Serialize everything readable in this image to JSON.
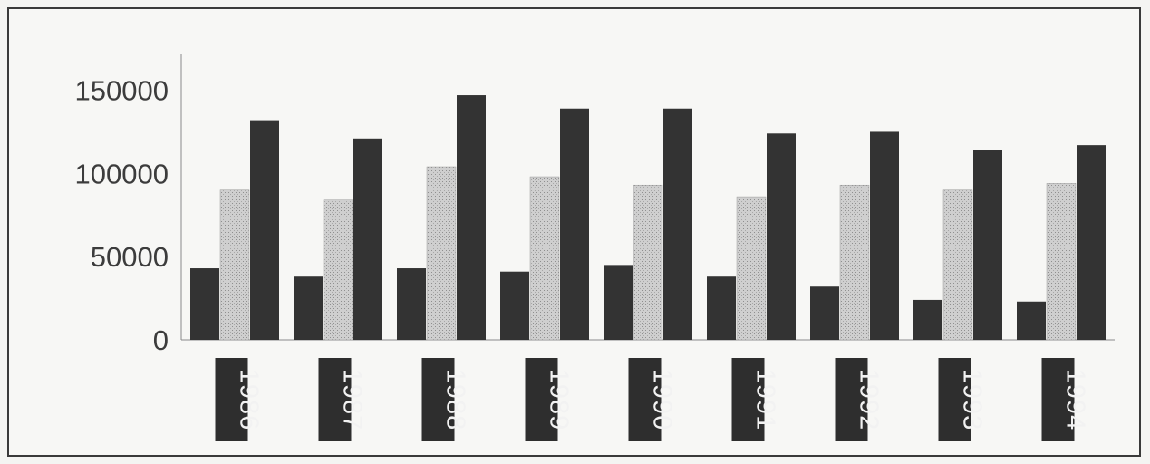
{
  "chart_data": {
    "type": "bar",
    "title": "",
    "xlabel": "",
    "ylabel": "",
    "ylim": [
      0,
      165000
    ],
    "yticks": [
      0,
      50000,
      100000,
      150000
    ],
    "ytick_labels": [
      "0",
      "50000",
      "100000",
      "150000"
    ],
    "categories": [
      "1986",
      "1987",
      "1988",
      "1989",
      "1990",
      "1991",
      "1992",
      "1993",
      "1994"
    ],
    "series": [
      {
        "values": [
          43000,
          38000,
          43000,
          41000,
          45000,
          38000,
          32000,
          24000,
          23000
        ]
      },
      {
        "values": [
          90000,
          84000,
          104000,
          98000,
          93000,
          86000,
          93000,
          90000,
          94000
        ]
      },
      {
        "values": [
          132000,
          121000,
          147000,
          139000,
          139000,
          124000,
          125000,
          114000,
          117000
        ]
      }
    ],
    "grid": false,
    "legend": "none",
    "colors": {
      "series_dark": "#333333",
      "series_light": "#c9c9c9",
      "label_box": "#2e2e2e",
      "axis": "#8a8a8a"
    }
  }
}
